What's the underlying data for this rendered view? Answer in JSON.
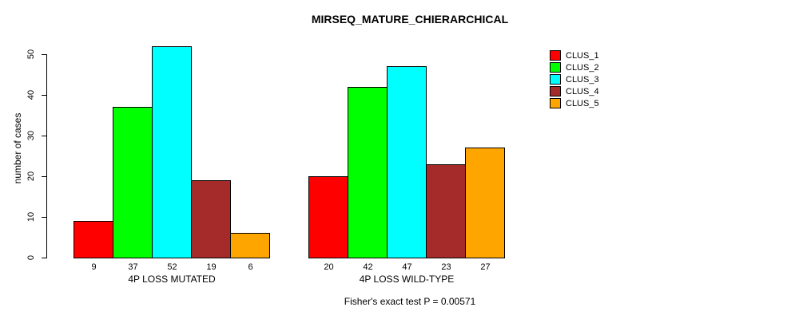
{
  "chart_data": {
    "type": "bar",
    "title": "MIRSEQ_MATURE_CHIERARCHICAL",
    "xlabel": "",
    "ylabel": "number of cases",
    "ylim": [
      0,
      50
    ],
    "yticks": [
      0,
      10,
      20,
      30,
      40,
      50
    ],
    "grid": false,
    "bar_value_labels": true,
    "legend_position": "top-right",
    "categories": [
      "4P LOSS MUTATED",
      "4P LOSS WILD-TYPE"
    ],
    "series": [
      {
        "name": "CLUS_1",
        "color": "#FF0000",
        "values": [
          9,
          20
        ]
      },
      {
        "name": "CLUS_2",
        "color": "#00FF00",
        "values": [
          37,
          42
        ]
      },
      {
        "name": "CLUS_3",
        "color": "#00FFFF",
        "values": [
          52,
          47
        ]
      },
      {
        "name": "CLUS_4",
        "color": "#A52A2A",
        "values": [
          19,
          23
        ]
      },
      {
        "name": "CLUS_5",
        "color": "#FFA500",
        "values": [
          6,
          27
        ]
      }
    ],
    "annotation": "Fisher's exact test P = 0.00571"
  }
}
